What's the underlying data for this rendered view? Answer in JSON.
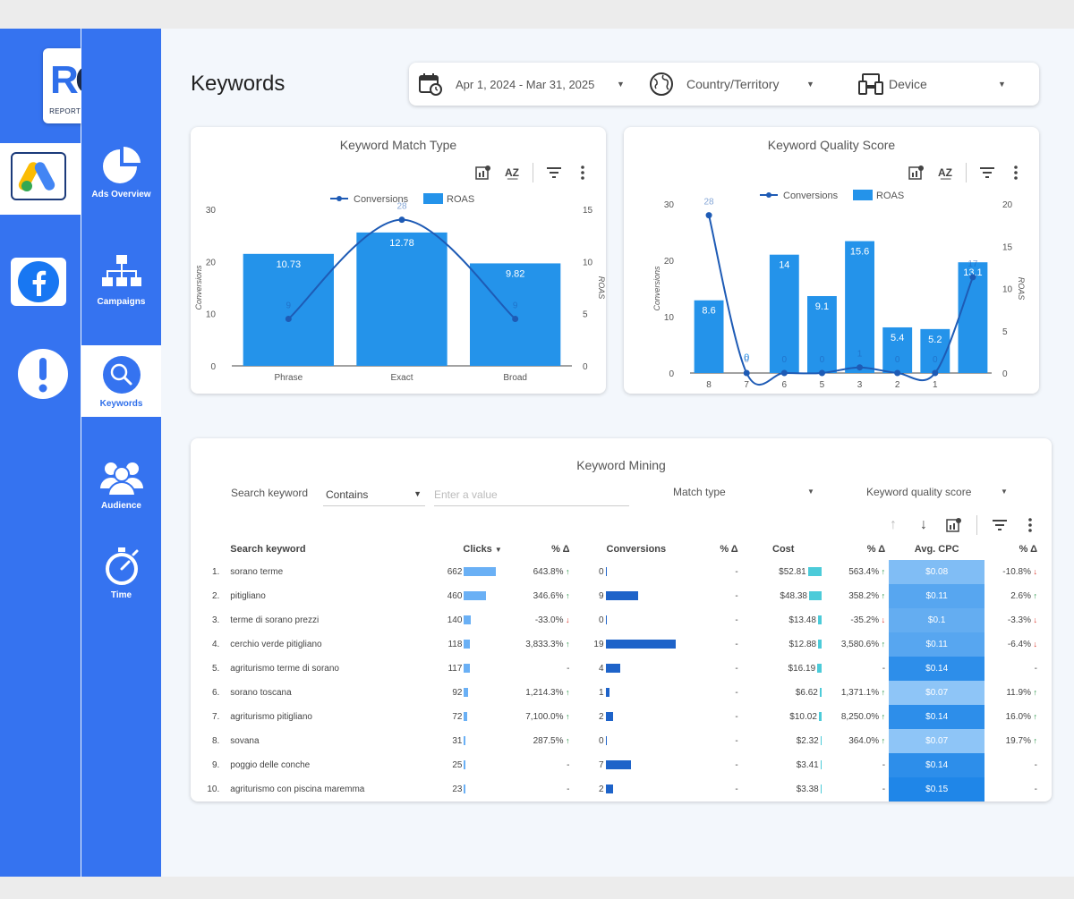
{
  "logo": {
    "monogram": "RG",
    "name": "REPORT GENIUS"
  },
  "sidebar": {
    "platforms": [
      {
        "name": "google-ads"
      },
      {
        "name": "facebook"
      },
      {
        "name": "alerts"
      }
    ],
    "nav": [
      {
        "label": "Ads Overview",
        "icon": "pie-chart-icon"
      },
      {
        "label": "Campaigns",
        "icon": "hierarchy-icon"
      },
      {
        "label": "Keywords",
        "icon": "magnifier-icon",
        "active": true
      },
      {
        "label": "Audience",
        "icon": "people-icon"
      },
      {
        "label": "Time",
        "icon": "stopwatch-icon"
      }
    ]
  },
  "header": {
    "title": "Keywords",
    "date_range": "Apr 1, 2024 - Mar 31, 2025",
    "country": "Country/Territory",
    "device": "Device"
  },
  "match_type_chart": {
    "title": "Keyword Match Type",
    "chart_data": {
      "type": "bar+line",
      "categories": [
        "Phrase",
        "Exact",
        "Broad"
      ],
      "series": [
        {
          "name": "ROAS",
          "type": "bar",
          "axis": "right",
          "values": [
            10.73,
            12.78,
            9.82
          ]
        },
        {
          "name": "Conversions",
          "type": "line",
          "axis": "left",
          "values": [
            9,
            28,
            9
          ]
        }
      ],
      "ylabel": "Conversions",
      "y2label": "ROAS",
      "ylim": [
        0,
        30
      ],
      "y2lim": [
        0,
        15
      ],
      "yticks": [
        0,
        10,
        20,
        30
      ],
      "y2ticks": [
        0,
        5,
        10,
        15
      ],
      "legend": "top-center"
    }
  },
  "quality_chart": {
    "title": "Keyword Quality Score",
    "chart_data": {
      "type": "bar+line",
      "categories": [
        "8",
        "7",
        "6",
        "5",
        "3",
        "2",
        "1",
        ""
      ],
      "series": [
        {
          "name": "ROAS",
          "type": "bar",
          "axis": "right",
          "values": [
            8.6,
            0,
            14,
            9.1,
            15.6,
            5.4,
            5.2,
            13.1
          ]
        },
        {
          "name": "Conversions",
          "type": "line",
          "axis": "left",
          "values": [
            28,
            0,
            0,
            0,
            1,
            0,
            0,
            17
          ]
        }
      ],
      "ylabel": "Conversions",
      "y2label": "ROAS",
      "ylim": [
        0,
        30
      ],
      "y2lim": [
        0,
        20
      ],
      "yticks": [
        0,
        10,
        20,
        30
      ],
      "y2ticks": [
        0,
        5,
        10,
        15,
        20
      ],
      "legend": "top-center"
    }
  },
  "mining": {
    "title": "Keyword Mining",
    "search_label": "Search keyword",
    "operator": "Contains",
    "input_placeholder": "Enter a value",
    "match_type": "Match type",
    "quality_score": "Keyword quality score",
    "columns": [
      "Search keyword",
      "Clicks",
      "% Δ",
      "Conversions",
      "% Δ",
      "Cost",
      "% Δ",
      "Avg. CPC",
      "% Δ"
    ],
    "rows": [
      {
        "n": "1.",
        "kw": "sorano terme",
        "clicks": 662,
        "clicks_d": "643.8%",
        "clicks_dir": "up",
        "conv": 0,
        "conv_d": "-",
        "conv_dir": "",
        "cost": "$52.81",
        "cost_v": 52.81,
        "cost_d": "563.4%",
        "cost_dir": "up",
        "cpc": "$0.08",
        "cpc_v": 0.08,
        "cpc_d": "-10.8%",
        "cpc_dir": "dn"
      },
      {
        "n": "2.",
        "kw": "pitigliano",
        "clicks": 460,
        "clicks_d": "346.6%",
        "clicks_dir": "up",
        "conv": 9,
        "conv_d": "-",
        "conv_dir": "",
        "cost": "$48.38",
        "cost_v": 48.38,
        "cost_d": "358.2%",
        "cost_dir": "up",
        "cpc": "$0.11",
        "cpc_v": 0.11,
        "cpc_d": "2.6%",
        "cpc_dir": "up"
      },
      {
        "n": "3.",
        "kw": "terme di sorano prezzi",
        "clicks": 140,
        "clicks_d": "-33.0%",
        "clicks_dir": "dn",
        "conv": 0,
        "conv_d": "-",
        "conv_dir": "",
        "cost": "$13.48",
        "cost_v": 13.48,
        "cost_d": "-35.2%",
        "cost_dir": "dn",
        "cpc": "$0.1",
        "cpc_v": 0.1,
        "cpc_d": "-3.3%",
        "cpc_dir": "dn"
      },
      {
        "n": "4.",
        "kw": "cerchio verde pitigliano",
        "clicks": 118,
        "clicks_d": "3,833.3%",
        "clicks_dir": "up",
        "conv": 19,
        "conv_d": "-",
        "conv_dir": "",
        "cost": "$12.88",
        "cost_v": 12.88,
        "cost_d": "3,580.6%",
        "cost_dir": "up",
        "cpc": "$0.11",
        "cpc_v": 0.11,
        "cpc_d": "-6.4%",
        "cpc_dir": "dn"
      },
      {
        "n": "5.",
        "kw": "agriturismo terme di sorano",
        "clicks": 117,
        "clicks_d": "-",
        "clicks_dir": "",
        "conv": 4,
        "conv_d": "-",
        "conv_dir": "",
        "cost": "$16.19",
        "cost_v": 16.19,
        "cost_d": "-",
        "cost_dir": "",
        "cpc": "$0.14",
        "cpc_v": 0.14,
        "cpc_d": "-",
        "cpc_dir": ""
      },
      {
        "n": "6.",
        "kw": "sorano toscana",
        "clicks": 92,
        "clicks_d": "1,214.3%",
        "clicks_dir": "up",
        "conv": 1,
        "conv_d": "-",
        "conv_dir": "",
        "cost": "$6.62",
        "cost_v": 6.62,
        "cost_d": "1,371.1%",
        "cost_dir": "up",
        "cpc": "$0.07",
        "cpc_v": 0.07,
        "cpc_d": "11.9%",
        "cpc_dir": "up"
      },
      {
        "n": "7.",
        "kw": "agriturismo pitigliano",
        "clicks": 72,
        "clicks_d": "7,100.0%",
        "clicks_dir": "up",
        "conv": 2,
        "conv_d": "-",
        "conv_dir": "",
        "cost": "$10.02",
        "cost_v": 10.02,
        "cost_d": "8,250.0%",
        "cost_dir": "up",
        "cpc": "$0.14",
        "cpc_v": 0.14,
        "cpc_d": "16.0%",
        "cpc_dir": "up"
      },
      {
        "n": "8.",
        "kw": "sovana",
        "clicks": 31,
        "clicks_d": "287.5%",
        "clicks_dir": "up",
        "conv": 0,
        "conv_d": "-",
        "conv_dir": "",
        "cost": "$2.32",
        "cost_v": 2.32,
        "cost_d": "364.0%",
        "cost_dir": "up",
        "cpc": "$0.07",
        "cpc_v": 0.07,
        "cpc_d": "19.7%",
        "cpc_dir": "up"
      },
      {
        "n": "9.",
        "kw": "poggio delle conche",
        "clicks": 25,
        "clicks_d": "-",
        "clicks_dir": "",
        "conv": 7,
        "conv_d": "-",
        "conv_dir": "",
        "cost": "$3.41",
        "cost_v": 3.41,
        "cost_d": "-",
        "cost_dir": "",
        "cpc": "$0.14",
        "cpc_v": 0.14,
        "cpc_d": "-",
        "cpc_dir": ""
      },
      {
        "n": "10.",
        "kw": "agriturismo con piscina maremma",
        "clicks": 23,
        "clicks_d": "-",
        "clicks_dir": "",
        "conv": 2,
        "conv_d": "-",
        "conv_dir": "",
        "cost": "$3.38",
        "cost_v": 3.38,
        "cost_d": "-",
        "cost_dir": "",
        "cpc": "$0.15",
        "cpc_v": 0.15,
        "cpc_d": "-",
        "cpc_dir": ""
      }
    ]
  },
  "colors": {
    "brand": "#3573f0",
    "bar": "#2493ea",
    "line": "#1e5bb5",
    "cpc_dark": "#1f86e8",
    "cpc_light": "#8ec5f7"
  }
}
